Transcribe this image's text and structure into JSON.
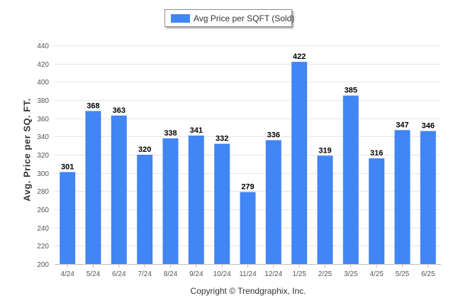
{
  "legend": {
    "label": "Avg Price per SQFT (Sold)",
    "swatch_color": "#4285f4"
  },
  "footer": {
    "copyright": "Copyright © Trendgraphix, Inc."
  },
  "chart_data": {
    "type": "bar",
    "categories": [
      "4/24",
      "5/24",
      "6/24",
      "7/24",
      "8/24",
      "9/24",
      "10/24",
      "11/24",
      "12/24",
      "1/25",
      "2/25",
      "3/25",
      "4/25",
      "5/25",
      "6/25"
    ],
    "series": [
      {
        "name": "Avg Price per SQFT (Sold)",
        "values": [
          301,
          368,
          363,
          320,
          338,
          341,
          332,
          279,
          336,
          422,
          319,
          385,
          316,
          347,
          346
        ],
        "color": "#4285f4"
      }
    ],
    "ylabel": "Avg. Price per SQ. FT.",
    "xlabel": "",
    "ylim": [
      200,
      440
    ],
    "yticks": [
      200,
      220,
      240,
      260,
      280,
      300,
      320,
      340,
      360,
      380,
      400,
      420,
      440
    ],
    "grid": true,
    "legend_position": "top-center",
    "data_labels": true
  }
}
